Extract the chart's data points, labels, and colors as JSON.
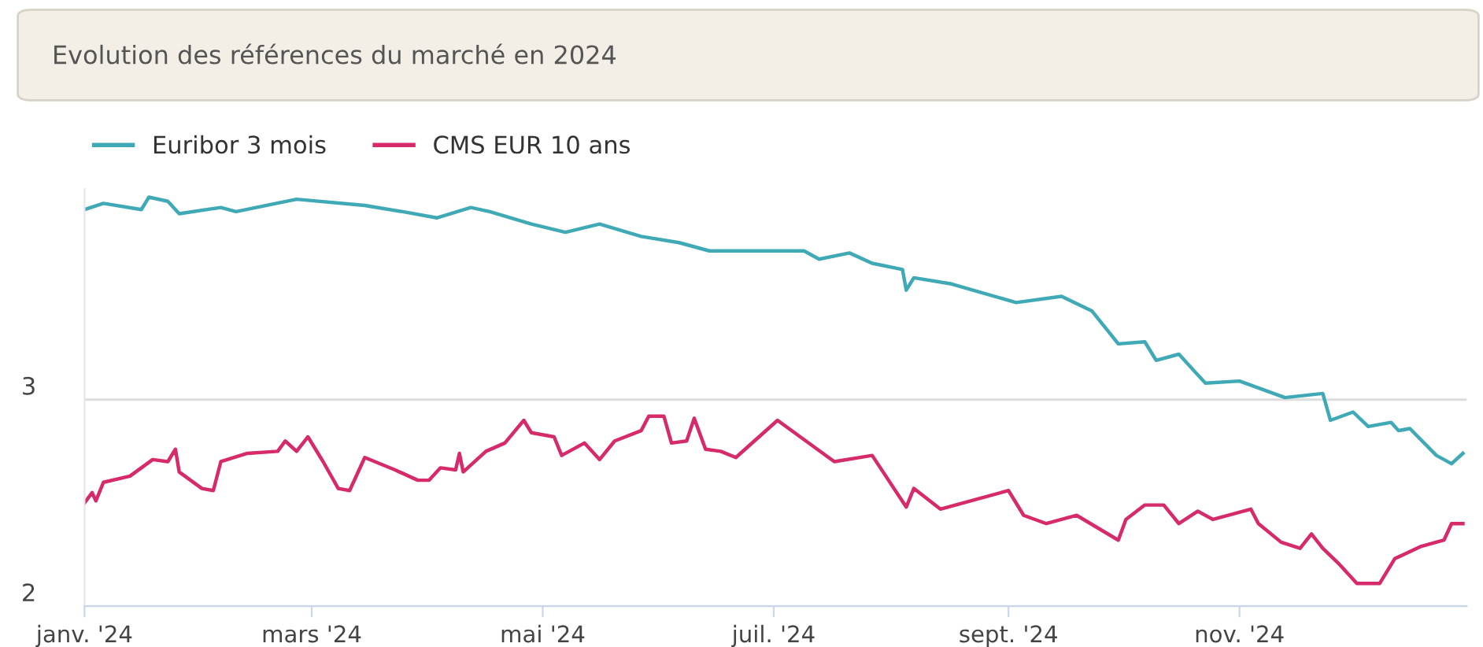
{
  "chart_data": {
    "type": "line",
    "title": "Evolution des références du marché en 2024",
    "xlim": [
      "2024-01-01",
      "2024-12-31"
    ],
    "xticks": [
      {
        "value": "2024-01-01",
        "label": "janv. '24"
      },
      {
        "value": "2024-03-01",
        "label": "mars '24"
      },
      {
        "value": "2024-05-01",
        "label": "mai '24"
      },
      {
        "value": "2024-07-01",
        "label": "juil. '24"
      },
      {
        "value": "2024-09-01",
        "label": "sept. '24"
      },
      {
        "value": "2024-11-01",
        "label": "nov. '24"
      }
    ],
    "ylim": [
      2,
      4.02
    ],
    "yticks": [
      2,
      3
    ],
    "grid": "y",
    "legend": "top left",
    "marker": "none",
    "line_style": "solid",
    "series": [
      {
        "name": "Euribor 3 mois",
        "color": "#3fa9b5",
        "x": [
          "2024-01-01",
          "2024-01-06",
          "2024-01-16",
          "2024-01-18",
          "2024-01-23",
          "2024-01-26",
          "2024-02-06",
          "2024-02-10",
          "2024-02-26",
          "2024-03-15",
          "2024-03-25",
          "2024-04-03",
          "2024-04-12",
          "2024-04-17",
          "2024-04-28",
          "2024-05-07",
          "2024-05-16",
          "2024-05-27",
          "2024-06-06",
          "2024-06-14",
          "2024-06-17",
          "2024-06-25",
          "2024-07-09",
          "2024-07-13",
          "2024-07-21",
          "2024-07-27",
          "2024-08-04",
          "2024-08-05",
          "2024-08-07",
          "2024-08-17",
          "2024-09-03",
          "2024-09-15",
          "2024-09-23",
          "2024-09-30",
          "2024-10-07",
          "2024-10-10",
          "2024-10-16",
          "2024-10-23",
          "2024-11-01",
          "2024-11-13",
          "2024-11-23",
          "2024-11-25",
          "2024-12-01",
          "2024-12-05",
          "2024-12-11",
          "2024-12-13",
          "2024-12-16",
          "2024-12-23",
          "2024-12-27",
          "2024-12-30"
        ],
        "values": [
          3.92,
          3.95,
          3.92,
          3.98,
          3.96,
          3.9,
          3.93,
          3.91,
          3.97,
          3.94,
          3.91,
          3.88,
          3.93,
          3.91,
          3.85,
          3.81,
          3.85,
          3.79,
          3.76,
          3.72,
          3.72,
          3.72,
          3.72,
          3.68,
          3.71,
          3.66,
          3.63,
          3.53,
          3.59,
          3.56,
          3.47,
          3.5,
          3.43,
          3.27,
          3.28,
          3.19,
          3.22,
          3.08,
          3.09,
          3.01,
          3.03,
          2.9,
          2.94,
          2.87,
          2.89,
          2.85,
          2.86,
          2.73,
          2.69,
          2.74
        ]
      },
      {
        "name": "CMS EUR 10 ans",
        "color": "#d62a6a",
        "x": [
          "2024-01-01",
          "2024-01-03",
          "2024-01-04",
          "2024-01-06",
          "2024-01-13",
          "2024-01-19",
          "2024-01-23",
          "2024-01-25",
          "2024-01-26",
          "2024-02-01",
          "2024-02-04",
          "2024-02-06",
          "2024-02-13",
          "2024-02-21",
          "2024-02-23",
          "2024-02-26",
          "2024-02-29",
          "2024-03-04",
          "2024-03-08",
          "2024-03-11",
          "2024-03-15",
          "2024-03-23",
          "2024-03-29",
          "2024-04-01",
          "2024-04-04",
          "2024-04-08",
          "2024-04-09",
          "2024-04-10",
          "2024-04-16",
          "2024-04-21",
          "2024-04-26",
          "2024-04-28",
          "2024-05-04",
          "2024-05-06",
          "2024-05-12",
          "2024-05-16",
          "2024-05-20",
          "2024-05-27",
          "2024-05-29",
          "2024-06-02",
          "2024-06-04",
          "2024-06-08",
          "2024-06-10",
          "2024-06-13",
          "2024-06-17",
          "2024-06-21",
          "2024-07-02",
          "2024-07-08",
          "2024-07-17",
          "2024-07-27",
          "2024-08-05",
          "2024-08-07",
          "2024-08-14",
          "2024-08-22",
          "2024-09-01",
          "2024-09-05",
          "2024-09-11",
          "2024-09-19",
          "2024-09-30",
          "2024-10-02",
          "2024-10-07",
          "2024-10-12",
          "2024-10-16",
          "2024-10-21",
          "2024-10-25",
          "2024-11-04",
          "2024-11-06",
          "2024-11-12",
          "2024-11-17",
          "2024-11-20",
          "2024-11-23",
          "2024-11-27",
          "2024-12-02",
          "2024-12-08",
          "2024-12-12",
          "2024-12-19",
          "2024-12-25",
          "2024-12-27",
          "2024-12-30"
        ],
        "values": [
          2.5,
          2.55,
          2.51,
          2.6,
          2.63,
          2.71,
          2.7,
          2.76,
          2.65,
          2.57,
          2.56,
          2.7,
          2.74,
          2.75,
          2.8,
          2.75,
          2.82,
          2.7,
          2.57,
          2.56,
          2.72,
          2.66,
          2.61,
          2.61,
          2.67,
          2.66,
          2.74,
          2.65,
          2.75,
          2.79,
          2.9,
          2.84,
          2.82,
          2.73,
          2.79,
          2.71,
          2.8,
          2.85,
          2.92,
          2.92,
          2.79,
          2.8,
          2.91,
          2.76,
          2.75,
          2.72,
          2.9,
          2.82,
          2.7,
          2.73,
          2.48,
          2.57,
          2.47,
          2.51,
          2.56,
          2.44,
          2.4,
          2.44,
          2.32,
          2.42,
          2.49,
          2.49,
          2.4,
          2.46,
          2.42,
          2.47,
          2.4,
          2.31,
          2.28,
          2.35,
          2.28,
          2.21,
          2.11,
          2.11,
          2.23,
          2.29,
          2.32,
          2.4,
          2.4
        ]
      }
    ]
  }
}
